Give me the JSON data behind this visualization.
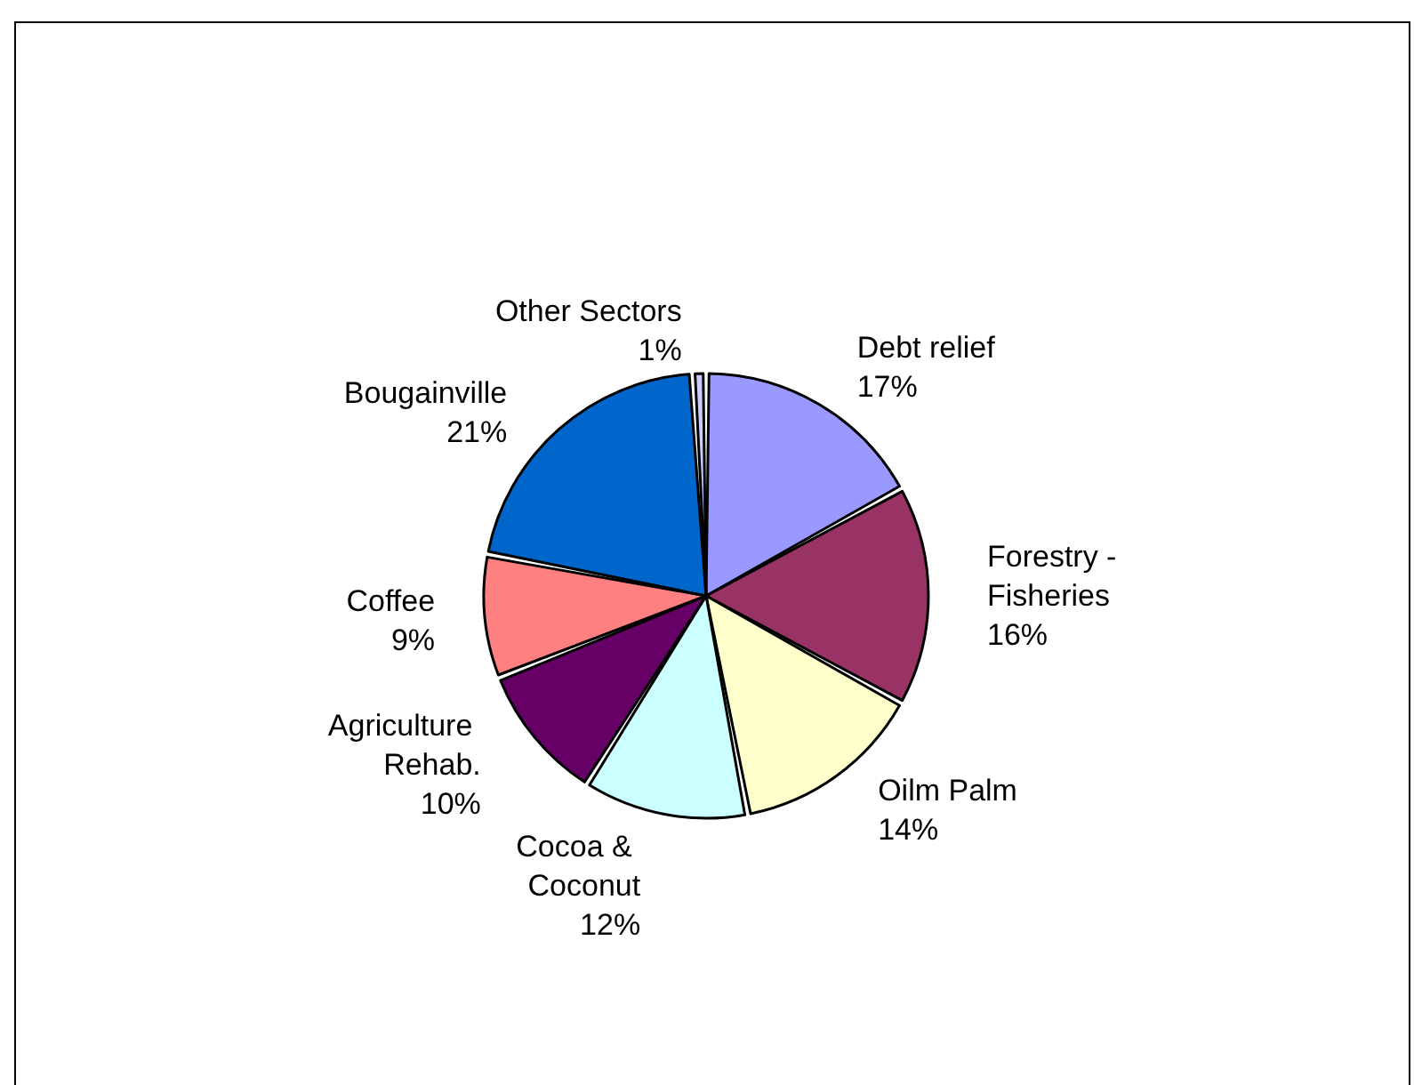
{
  "chart_data": {
    "type": "pie",
    "categories": [
      "Debt relief",
      "Forestry - Fisheries",
      "Oilm Palm",
      "Cocoa & Coconut",
      "Agriculture Rehab.",
      "Coffee",
      "Bougainville",
      "Other Sectors"
    ],
    "values": [
      17,
      16,
      14,
      12,
      10,
      9,
      21,
      1
    ],
    "value_labels": [
      "17%",
      "16%",
      "14%",
      "12%",
      "10%",
      "9%",
      "21%",
      "1%"
    ],
    "colors": [
      "#9999ff",
      "#993366",
      "#ffffcc",
      "#ccffff",
      "#660066",
      "#ff8080",
      "#0066cc",
      "#ccccff"
    ],
    "legend": false
  }
}
